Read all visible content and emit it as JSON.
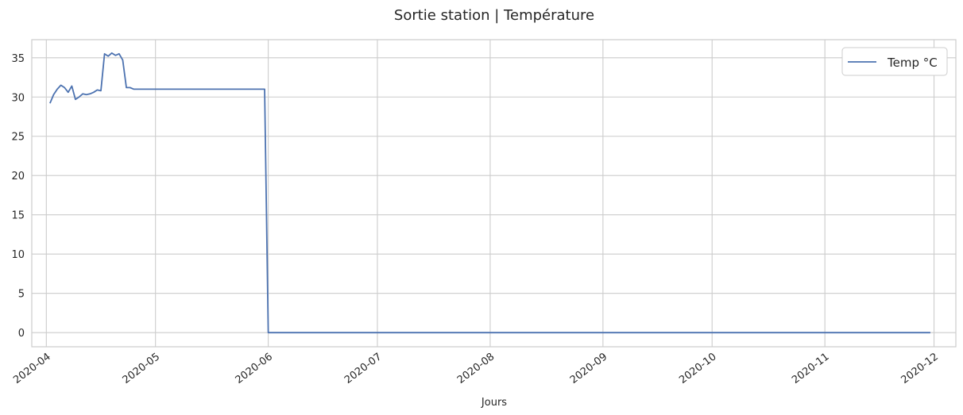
{
  "chart_data": {
    "type": "line",
    "title": "Sortie station | Température",
    "xlabel": "Jours",
    "ylabel": "",
    "ylim": [
      -1.8,
      37.3
    ],
    "xlim": [
      "2020-03-28",
      "2020-12-07"
    ],
    "yticks": [
      0,
      5,
      10,
      15,
      20,
      25,
      30,
      35
    ],
    "xticks": [
      "2020-04-01",
      "2020-05-01",
      "2020-06-01",
      "2020-07-01",
      "2020-08-01",
      "2020-09-01",
      "2020-10-01",
      "2020-11-01",
      "2020-12-01"
    ],
    "xtick_labels": [
      "2020-04",
      "2020-05",
      "2020-06",
      "2020-07",
      "2020-08",
      "2020-09",
      "2020-10",
      "2020-11",
      "2020-12"
    ],
    "grid": true,
    "legend_position": "top-right",
    "colors": {
      "line": "#4c72b0",
      "grid": "#cccccc",
      "frame": "#cccccc",
      "text": "#262626"
    },
    "series": [
      {
        "name": "Temp °C",
        "x": [
          "2020-04-02",
          "2020-04-03",
          "2020-04-04",
          "2020-04-05",
          "2020-04-06",
          "2020-04-07",
          "2020-04-08",
          "2020-04-09",
          "2020-04-10",
          "2020-04-11",
          "2020-04-12",
          "2020-04-13",
          "2020-04-14",
          "2020-04-15",
          "2020-04-16",
          "2020-04-17",
          "2020-04-18",
          "2020-04-19",
          "2020-04-20",
          "2020-04-21",
          "2020-04-22",
          "2020-04-23",
          "2020-04-24",
          "2020-04-25",
          "2020-04-26",
          "2020-05-31",
          "2020-06-01",
          "2020-11-30"
        ],
        "values": [
          29.2,
          30.3,
          31.0,
          31.5,
          31.2,
          30.6,
          31.4,
          29.7,
          30.0,
          30.4,
          30.3,
          30.4,
          30.6,
          30.9,
          30.8,
          35.5,
          35.2,
          35.6,
          35.3,
          35.5,
          34.7,
          31.2,
          31.2,
          31.0,
          31.0,
          31.0,
          0.0,
          0.0
        ]
      }
    ]
  }
}
